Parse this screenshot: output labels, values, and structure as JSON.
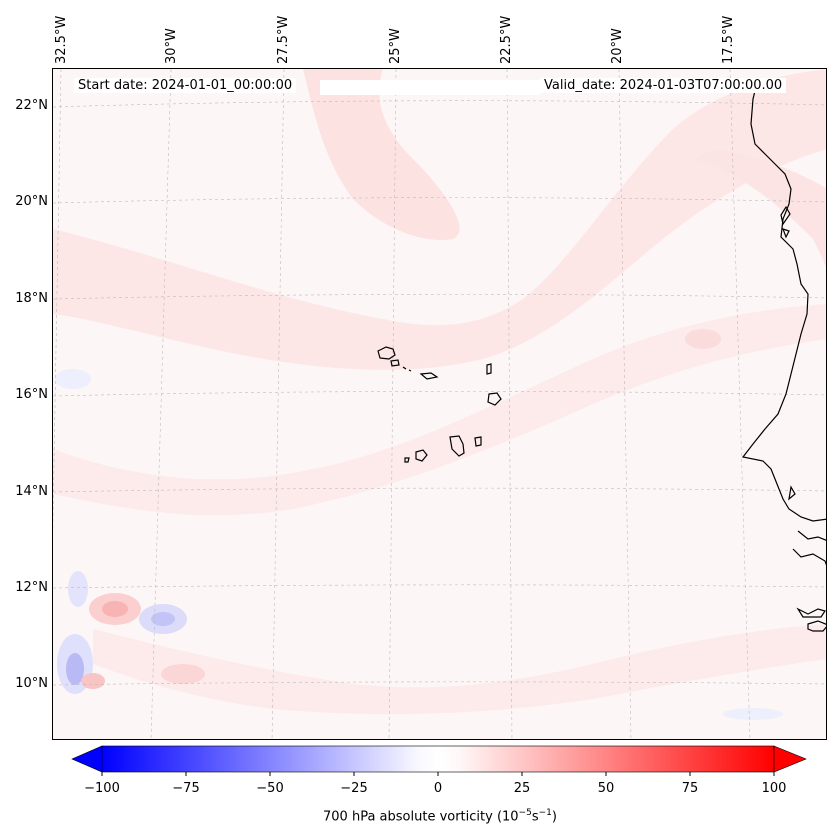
{
  "map": {
    "header": {
      "start_date": "Start date: 2024-01-01_00:00:00",
      "valid_date": "Valid_date: 2024-01-03T07:00:00.00"
    },
    "longitude_labels": [
      "32.5°W",
      "30°W",
      "27.5°W",
      "25°W",
      "22.5°W",
      "20°W",
      "17.5°W"
    ],
    "latitude_labels": [
      "22°N",
      "20°N",
      "18°N",
      "16°N",
      "14°N",
      "12°N",
      "10°N"
    ],
    "variable": "700 hPa absolute vorticity",
    "colors": {
      "negative": "#0000ff",
      "neutral": "#ffffff",
      "positive": "#ff0000",
      "background_field": "#fdf6f6",
      "coastline": "#000000"
    }
  },
  "colorbar": {
    "tick_labels": [
      "−100",
      "−75",
      "−50",
      "−25",
      "0",
      "25",
      "50",
      "75",
      "100"
    ],
    "min": -100,
    "max": 100,
    "title_prefix": "700 hPa absolute vorticity (10",
    "title_exp1": "−5",
    "title_mid": "s",
    "title_exp2": "−1",
    "title_suffix": ")"
  }
}
